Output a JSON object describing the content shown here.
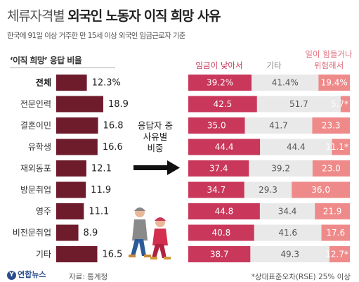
{
  "title_light": "체류자격별",
  "title_bold": "외국인 노동자 이직 희망 사유",
  "subtitle": "한국에 91일 이상 거주한 만 15세 이상 외국인 임금근로자 기준",
  "left_title": "‘이직 희망’ 응답 비율",
  "mid_text": [
    "응답자 중",
    "사유별",
    "비중"
  ],
  "source": "자료: 통계청",
  "logo_text": "연합뉴스",
  "logo_mark": "Y",
  "note": "*상대표준오차(RSE) 25% 이상",
  "colors": {
    "bar_dark": "#6e1b2c",
    "seg_wage": "#c9375a",
    "seg_other": "#e9e9e9",
    "seg_hard": "#ef8a8a",
    "hdr_wage": "#c9375a",
    "hdr_other": "#888888",
    "hdr_hard": "#e06a7a"
  },
  "chart_data": [
    {
      "type": "bar",
      "categories": [
        "전체",
        "전문인력",
        "결혼이민",
        "유학생",
        "재외동포",
        "방문취업",
        "영주",
        "비전문취업",
        "기타"
      ],
      "values": [
        12.3,
        18.9,
        16.8,
        16.6,
        12.1,
        11.9,
        11.1,
        8.9,
        16.5
      ],
      "value_labels": [
        "12.3%",
        "18.9",
        "16.8",
        "16.6",
        "12.1",
        "11.9",
        "11.1",
        "8.9",
        "16.5"
      ],
      "title": "‘이직 희망’ 응답 비율",
      "orientation": "horizontal",
      "xlim": [
        0,
        20
      ]
    },
    {
      "type": "bar",
      "stacked": true,
      "orientation": "horizontal",
      "categories": [
        "전체",
        "전문인력",
        "결혼이민",
        "유학생",
        "재외동포",
        "방문취업",
        "영주",
        "비전문취업",
        "기타"
      ],
      "series": [
        {
          "name": "임금이 낮아서",
          "values": [
            39.2,
            42.5,
            35.0,
            44.4,
            37.4,
            34.7,
            44.8,
            40.8,
            38.7
          ],
          "labels": [
            "39.2%",
            "42.5",
            "35.0",
            "44.4",
            "37.4",
            "34.7",
            "44.8",
            "40.8",
            "38.7"
          ]
        },
        {
          "name": "기타",
          "values": [
            41.4,
            51.7,
            41.7,
            44.4,
            39.2,
            29.3,
            34.4,
            41.6,
            49.3
          ],
          "labels": [
            "41.4%",
            "51.7",
            "41.7",
            "44.4",
            "39.2",
            "29.3",
            "34.4",
            "41.6",
            "49.3"
          ]
        },
        {
          "name": "일이 힘들거나 위험해서",
          "values": [
            19.4,
            5.7,
            23.3,
            11.1,
            23.0,
            36.0,
            21.9,
            17.6,
            12.7
          ],
          "labels": [
            "19.4%",
            "5.7*",
            "23.3",
            "11.1*",
            "23.0",
            "36.0",
            "21.9",
            "17.6",
            "12.7*"
          ]
        }
      ],
      "legend_labels": [
        [
          "임금이 낮아서"
        ],
        [
          "기타"
        ],
        [
          "일이 힘들거나",
          "위험해서"
        ]
      ],
      "xlim": [
        0,
        100
      ]
    }
  ]
}
